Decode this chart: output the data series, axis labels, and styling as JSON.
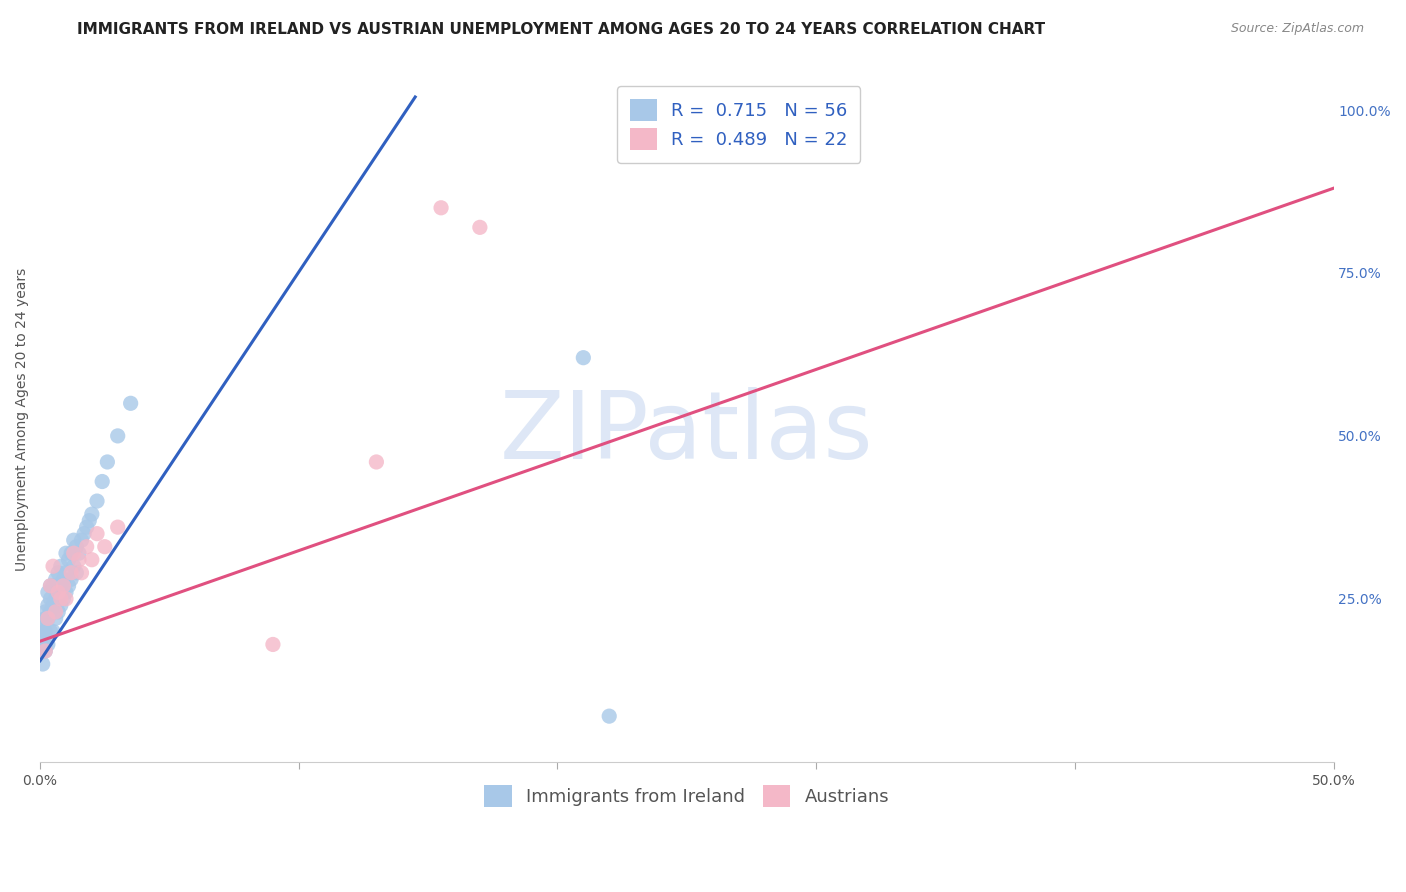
{
  "title": "IMMIGRANTS FROM IRELAND VS AUSTRIAN UNEMPLOYMENT AMONG AGES 20 TO 24 YEARS CORRELATION CHART",
  "source": "Source: ZipAtlas.com",
  "ylabel": "Unemployment Among Ages 20 to 24 years",
  "watermark": "ZIPatlas",
  "xlim": [
    0.0,
    0.5
  ],
  "ylim": [
    0.0,
    1.05
  ],
  "xticks": [
    0.0,
    0.1,
    0.2,
    0.3,
    0.4,
    0.5
  ],
  "yticks_right": [
    0.25,
    0.5,
    0.75,
    1.0
  ],
  "ytick_right_labels": [
    "25.0%",
    "50.0%",
    "75.0%",
    "100.0%"
  ],
  "blue_color": "#a8c8e8",
  "pink_color": "#f4b8c8",
  "blue_line_color": "#3060c0",
  "pink_line_color": "#e05080",
  "legend_blue_R": "0.715",
  "legend_blue_N": "56",
  "legend_pink_R": "0.489",
  "legend_pink_N": "22",
  "blue_scatter_x": [
    0.001,
    0.001,
    0.001,
    0.001,
    0.001,
    0.002,
    0.002,
    0.002,
    0.002,
    0.002,
    0.003,
    0.003,
    0.003,
    0.003,
    0.004,
    0.004,
    0.004,
    0.004,
    0.005,
    0.005,
    0.005,
    0.006,
    0.006,
    0.006,
    0.007,
    0.007,
    0.007,
    0.008,
    0.008,
    0.008,
    0.009,
    0.009,
    0.01,
    0.01,
    0.01,
    0.011,
    0.011,
    0.012,
    0.012,
    0.013,
    0.013,
    0.014,
    0.014,
    0.015,
    0.016,
    0.017,
    0.018,
    0.019,
    0.02,
    0.022,
    0.024,
    0.026,
    0.03,
    0.035,
    0.21,
    0.22
  ],
  "blue_scatter_y": [
    0.17,
    0.19,
    0.2,
    0.21,
    0.15,
    0.17,
    0.2,
    0.22,
    0.23,
    0.18,
    0.18,
    0.22,
    0.24,
    0.26,
    0.2,
    0.23,
    0.25,
    0.27,
    0.2,
    0.24,
    0.27,
    0.22,
    0.25,
    0.28,
    0.23,
    0.26,
    0.29,
    0.24,
    0.27,
    0.3,
    0.25,
    0.28,
    0.26,
    0.29,
    0.32,
    0.27,
    0.31,
    0.28,
    0.32,
    0.3,
    0.34,
    0.29,
    0.33,
    0.32,
    0.34,
    0.35,
    0.36,
    0.37,
    0.38,
    0.4,
    0.43,
    0.46,
    0.5,
    0.55,
    0.62,
    0.07
  ],
  "pink_scatter_x": [
    0.002,
    0.003,
    0.004,
    0.005,
    0.006,
    0.007,
    0.008,
    0.009,
    0.01,
    0.012,
    0.013,
    0.015,
    0.016,
    0.018,
    0.02,
    0.022,
    0.025,
    0.03,
    0.09,
    0.13,
    0.155,
    0.17
  ],
  "pink_scatter_y": [
    0.17,
    0.22,
    0.27,
    0.3,
    0.23,
    0.26,
    0.25,
    0.27,
    0.25,
    0.29,
    0.32,
    0.31,
    0.29,
    0.33,
    0.31,
    0.35,
    0.33,
    0.36,
    0.18,
    0.46,
    0.85,
    0.82
  ],
  "blue_trend_x": [
    0.0,
    0.145
  ],
  "blue_trend_y": [
    0.155,
    1.02
  ],
  "pink_trend_x": [
    0.0,
    0.5
  ],
  "pink_trend_y": [
    0.185,
    0.88
  ],
  "grid_color": "#dddddd",
  "background_color": "#ffffff",
  "title_fontsize": 11,
  "source_fontsize": 9,
  "axis_label_fontsize": 10,
  "tick_fontsize": 10,
  "legend_fontsize": 13,
  "watermark_fontsize": 68,
  "watermark_color": "#c8d8f0",
  "right_tick_color": "#4472c4",
  "scatter_size": 120
}
